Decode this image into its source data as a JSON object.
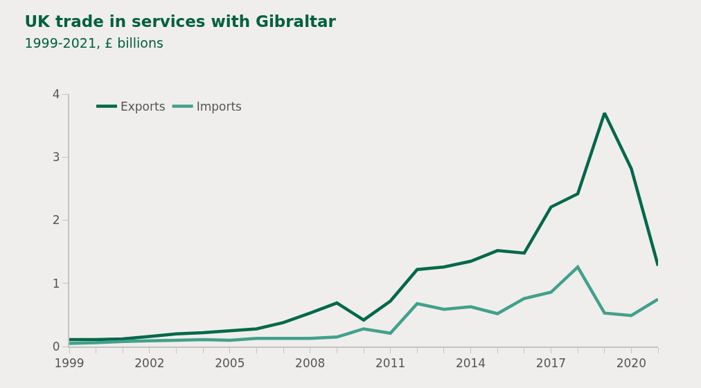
{
  "chart_data": {
    "type": "line",
    "title": "UK trade in services with Gibraltar",
    "subtitle": "1999-2021, £ billions",
    "x": [
      1999,
      2000,
      2001,
      2002,
      2003,
      2004,
      2005,
      2006,
      2007,
      2008,
      2009,
      2010,
      2011,
      2012,
      2013,
      2014,
      2015,
      2016,
      2017,
      2018,
      2019,
      2020,
      2021
    ],
    "series": [
      {
        "name": "Exports",
        "color": "#00684a",
        "values": [
          0.11,
          0.11,
          0.12,
          0.16,
          0.2,
          0.22,
          0.25,
          0.28,
          0.38,
          0.53,
          0.69,
          0.42,
          0.72,
          1.22,
          1.26,
          1.35,
          1.52,
          1.48,
          2.21,
          2.42,
          3.7,
          2.82,
          1.28
        ]
      },
      {
        "name": "Imports",
        "color": "#43a08a",
        "values": [
          0.05,
          0.06,
          0.08,
          0.09,
          0.1,
          0.11,
          0.1,
          0.13,
          0.13,
          0.13,
          0.15,
          0.28,
          0.21,
          0.68,
          0.59,
          0.63,
          0.52,
          0.76,
          0.86,
          1.26,
          0.53,
          0.49,
          0.75
        ]
      }
    ],
    "xlim": [
      1999,
      2021
    ],
    "xticks": [
      1999,
      2002,
      2005,
      2008,
      2011,
      2014,
      2017,
      2020
    ],
    "ylim": [
      0,
      4
    ],
    "yticks": [
      0,
      1,
      2,
      3,
      4
    ],
    "grid": false,
    "legend": "top left",
    "marker": "none",
    "line_style": "solid"
  }
}
